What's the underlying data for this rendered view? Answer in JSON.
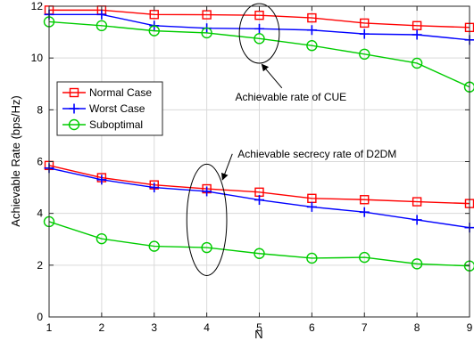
{
  "chart_data": {
    "type": "line",
    "xlabel": "N",
    "ylabel": "Achievable Rate (bps/Hz)",
    "x": [
      1,
      2,
      3,
      4,
      5,
      6,
      7,
      8,
      9
    ],
    "xlim": [
      1,
      9
    ],
    "ylim": [
      0,
      12
    ],
    "xticks": [
      1,
      2,
      3,
      4,
      5,
      6,
      7,
      8,
      9
    ],
    "yticks": [
      0,
      2,
      4,
      6,
      8,
      10,
      12
    ],
    "grid": true,
    "legend_position": "middle-left",
    "series": [
      {
        "name": "Normal Case",
        "group": "CUE",
        "color": "#ff0000",
        "marker": "square",
        "values": [
          11.85,
          11.85,
          11.68,
          11.67,
          11.65,
          11.55,
          11.35,
          11.25,
          11.18
        ]
      },
      {
        "name": "Worst Case",
        "group": "CUE",
        "color": "#0000ff",
        "marker": "plus",
        "values": [
          11.68,
          11.68,
          11.25,
          11.15,
          11.13,
          11.08,
          10.93,
          10.9,
          10.7
        ]
      },
      {
        "name": "Suboptimal",
        "group": "CUE",
        "color": "#00cc00",
        "marker": "circle",
        "values": [
          11.4,
          11.25,
          11.05,
          10.97,
          10.75,
          10.48,
          10.15,
          9.8,
          8.88
        ]
      },
      {
        "name": "Normal Case",
        "group": "D2DM",
        "color": "#ff0000",
        "marker": "square",
        "values": [
          5.85,
          5.38,
          5.1,
          4.95,
          4.82,
          4.58,
          4.53,
          4.45,
          4.38
        ]
      },
      {
        "name": "Worst Case",
        "group": "D2DM",
        "color": "#0000ff",
        "marker": "plus",
        "values": [
          5.75,
          5.3,
          5.0,
          4.85,
          4.52,
          4.25,
          4.05,
          3.75,
          3.45
        ]
      },
      {
        "name": "Suboptimal",
        "group": "D2DM",
        "color": "#00cc00",
        "marker": "circle",
        "values": [
          3.68,
          3.02,
          2.73,
          2.68,
          2.45,
          2.27,
          2.3,
          2.05,
          1.97
        ]
      }
    ],
    "legend": [
      {
        "label": "Normal Case",
        "color": "#ff0000",
        "marker": "square"
      },
      {
        "label": "Worst Case",
        "color": "#0000ff",
        "marker": "plus"
      },
      {
        "label": "Suboptimal",
        "color": "#00cc00",
        "marker": "circle"
      }
    ],
    "annotations": [
      {
        "text": "Achievable rate of CUE",
        "ellipse_center": [
          5,
          10.95
        ],
        "ellipse_rx": 0.38,
        "ellipse_ry": 1.15,
        "arrow_to": [
          5.05,
          9.75
        ],
        "text_at": [
          5.6,
          8.5
        ]
      },
      {
        "text": "Achievable secrecy rate of D2DM",
        "ellipse_center": [
          4,
          3.75
        ],
        "ellipse_rx": 0.38,
        "ellipse_ry": 2.15,
        "arrow_to": [
          4.3,
          5.3
        ],
        "text_at": [
          6.1,
          6.3
        ]
      }
    ]
  }
}
